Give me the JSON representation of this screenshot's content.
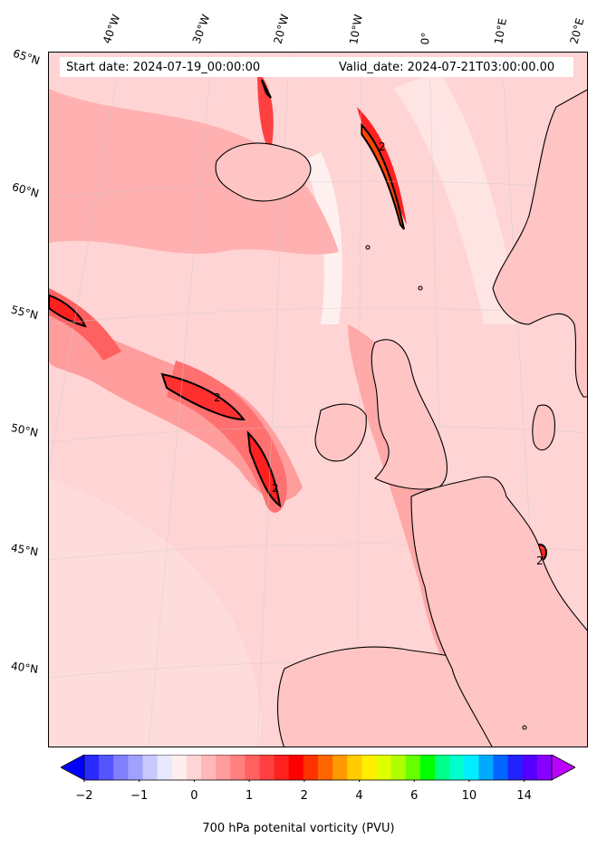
{
  "header": {
    "start_date": "Start date: 2024-07-19_00:00:00",
    "valid_date": "Valid_date: 2024-07-21T03:00:00.00"
  },
  "graticule": {
    "longitudes": [
      "40°W",
      "30°W",
      "20°W",
      "10°W",
      "0°",
      "10°E",
      "20°E"
    ],
    "latitudes": [
      "65°N",
      "60°N",
      "55°N",
      "50°N",
      "45°N",
      "40°N"
    ]
  },
  "contour_label": "2",
  "colorbar": {
    "label": "700 hPa potenital vorticity (PVU)",
    "ticks": [
      "−2",
      "−1",
      "0",
      "1",
      "2",
      "4",
      "6",
      "10",
      "14"
    ],
    "colors": [
      "#0000ff",
      "#2a2aff",
      "#5555ff",
      "#7f7fff",
      "#a0a0ff",
      "#c8c8ff",
      "#e8e8ff",
      "#ffeeee",
      "#ffd4d4",
      "#ffb8b8",
      "#ff9c9c",
      "#ff8080",
      "#ff6060",
      "#ff4040",
      "#ff2020",
      "#ff0000",
      "#ff3300",
      "#ff6600",
      "#ff9900",
      "#ffcc00",
      "#ffee00",
      "#e0ff00",
      "#b0ff00",
      "#66ff00",
      "#00ff00",
      "#00ff88",
      "#00ffcc",
      "#00eeff",
      "#00aaff",
      "#0066ff",
      "#2222ff",
      "#5500ff",
      "#8800ff",
      "#bb00ff"
    ]
  }
}
